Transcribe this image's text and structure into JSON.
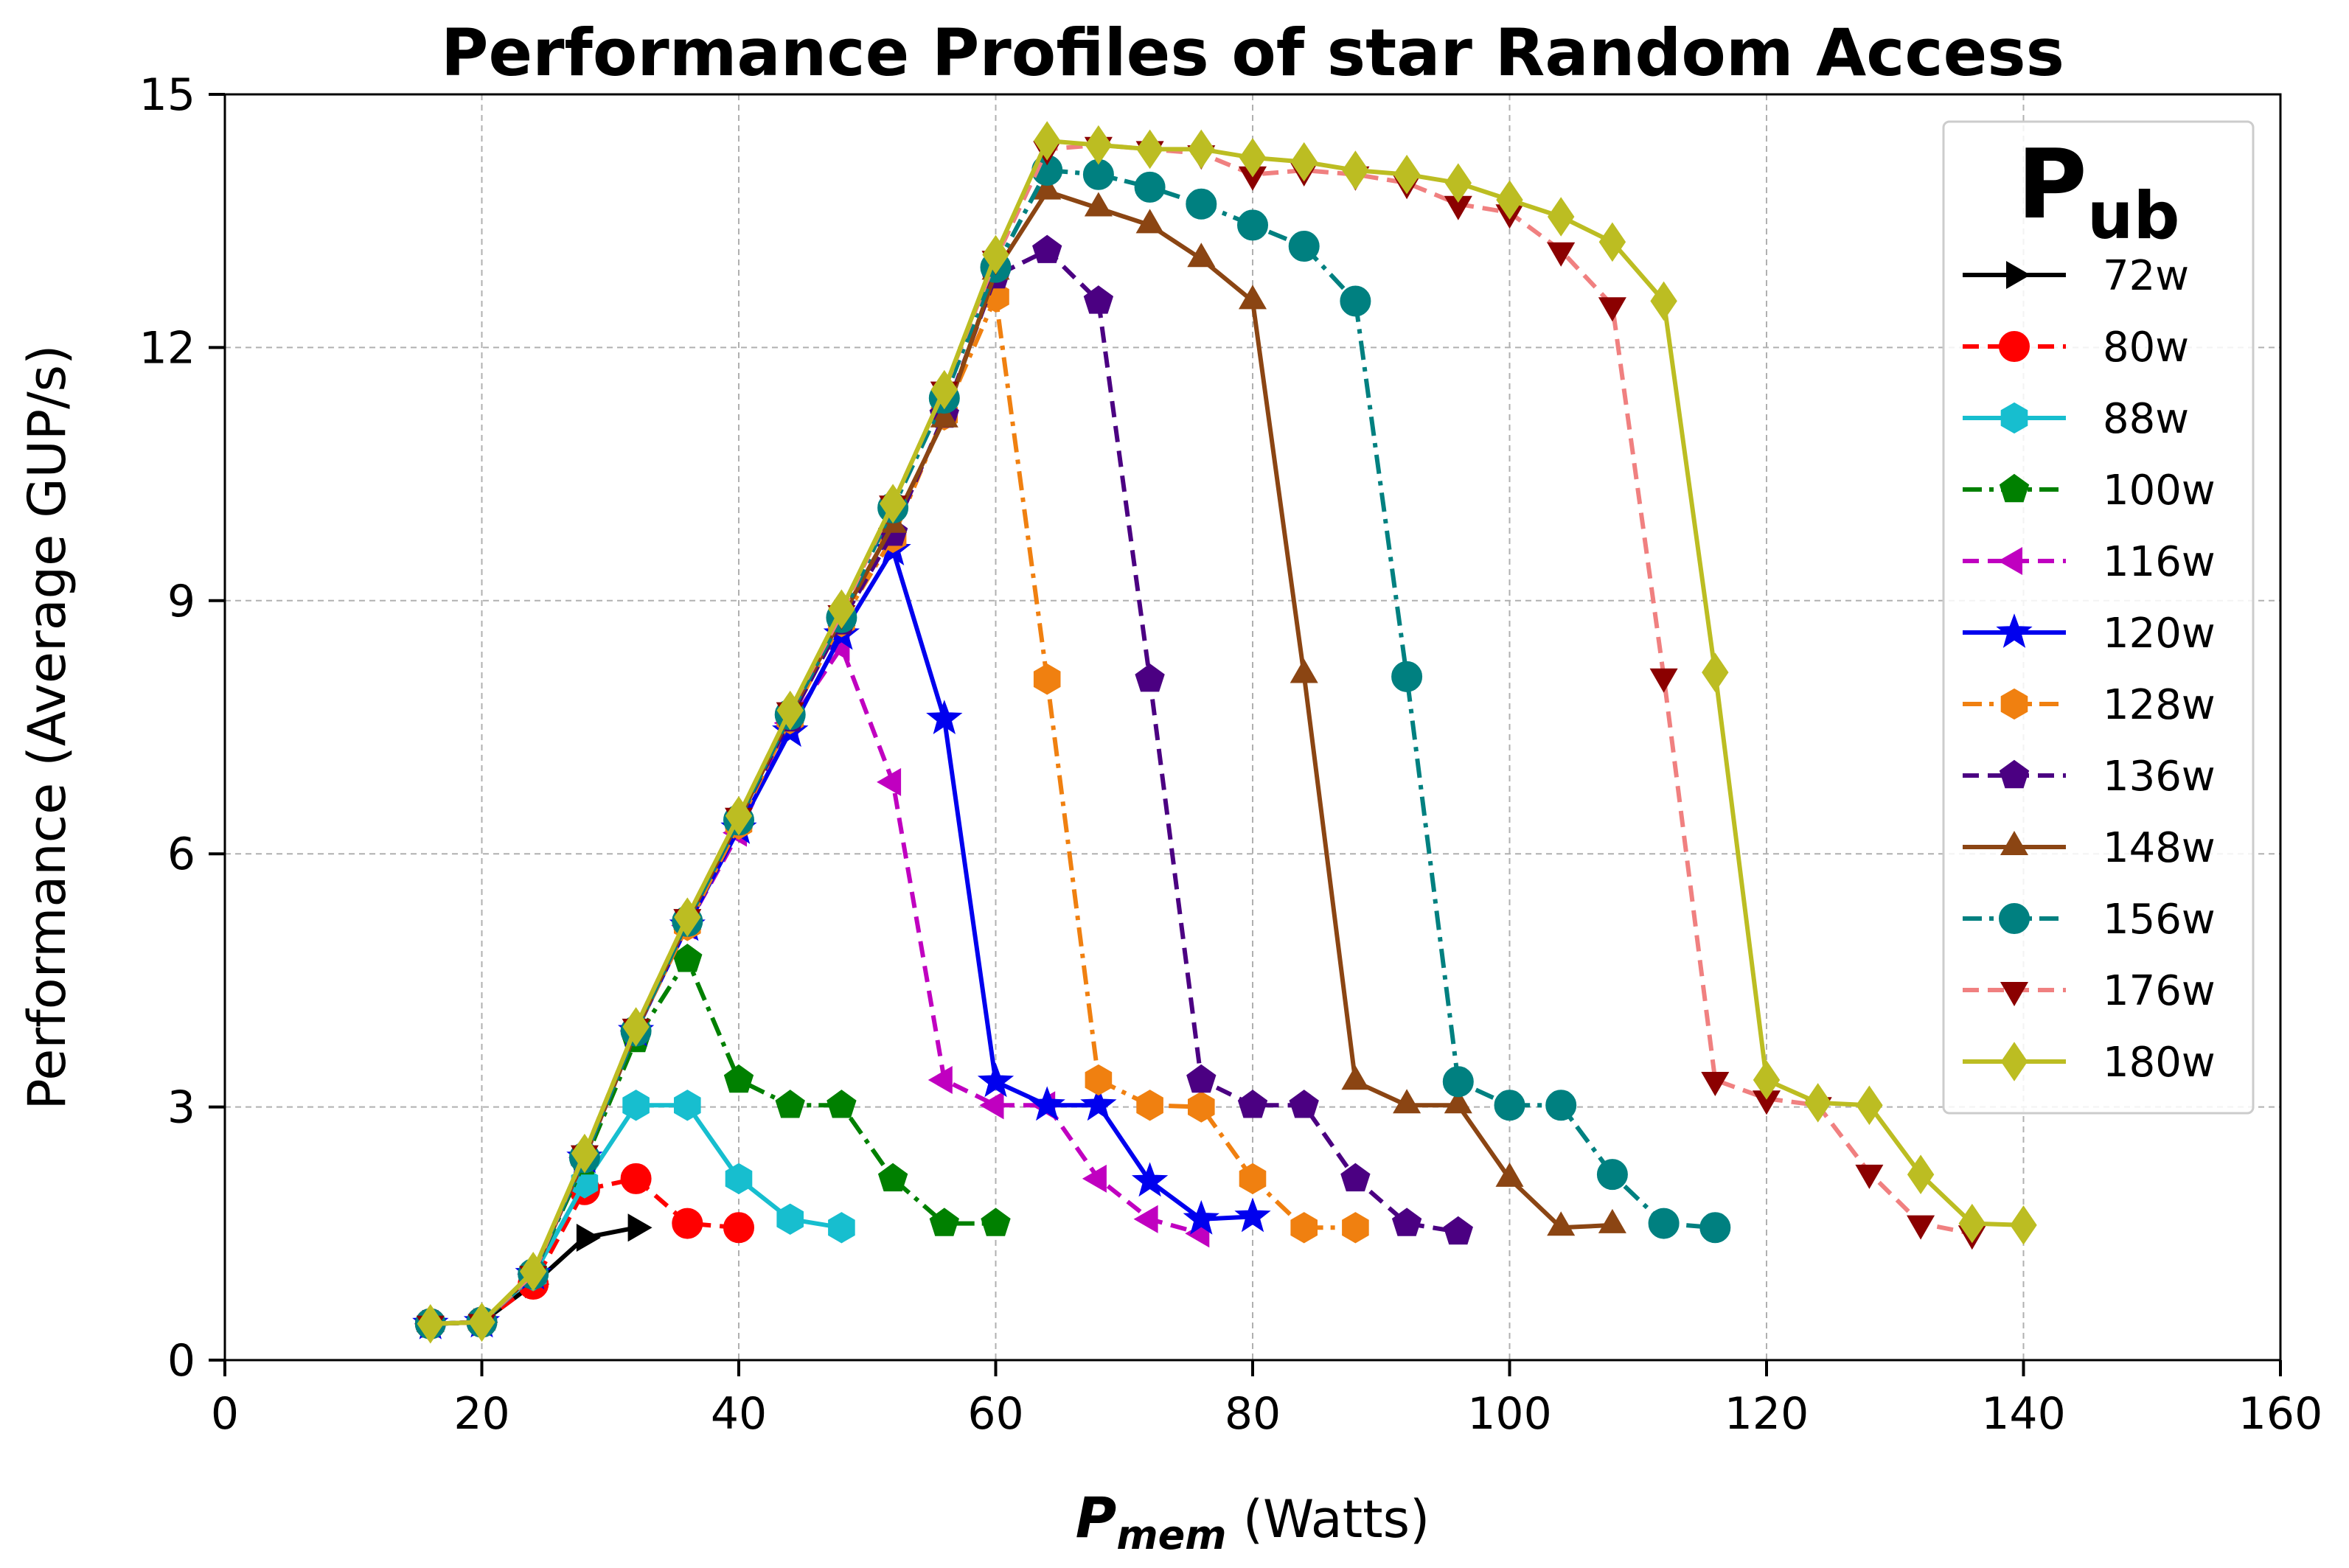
{
  "chart_data": {
    "type": "line",
    "title": "Performance Profiles of star Random Access",
    "xlabel": {
      "main": "P",
      "sub": "mem",
      "unit": " (Watts)"
    },
    "ylabel": "Performance (Average GUP/s)",
    "xlim": [
      0,
      160
    ],
    "ylim": [
      0,
      15
    ],
    "xticks": [
      "0",
      "20",
      "40",
      "60",
      "80",
      "100",
      "120",
      "140",
      "160"
    ],
    "yticks": [
      "0",
      "3",
      "6",
      "9",
      "12",
      "15"
    ],
    "grid": true,
    "legend": {
      "title_main": "P",
      "title_sub": "ub",
      "position": "top-right"
    },
    "series": [
      {
        "name": "72w",
        "color": "#000000",
        "dash": "solid",
        "marker": "triangle-right",
        "x": [
          16,
          20,
          24,
          28,
          32
        ],
        "y": [
          0.43,
          0.45,
          0.9,
          1.45,
          1.57
        ]
      },
      {
        "name": "80w",
        "color": "#ff0000",
        "dash": "dashed",
        "marker": "circle",
        "x": [
          16,
          20,
          24,
          28,
          32,
          36,
          40
        ],
        "y": [
          0.43,
          0.45,
          0.9,
          2.02,
          2.15,
          1.62,
          1.57
        ]
      },
      {
        "name": "88w",
        "color": "#17becf",
        "dash": "solid",
        "marker": "hexagon",
        "x": [
          16,
          20,
          24,
          28,
          32,
          36,
          40,
          44,
          48
        ],
        "y": [
          0.43,
          0.45,
          1.0,
          2.1,
          3.02,
          3.02,
          2.15,
          1.67,
          1.57
        ]
      },
      {
        "name": "100w",
        "color": "#008000",
        "dash": "dashdot",
        "marker": "pentagon",
        "x": [
          16,
          20,
          24,
          28,
          32,
          36,
          40,
          44,
          48,
          52,
          56,
          60
        ],
        "y": [
          0.43,
          0.45,
          1.02,
          2.35,
          3.8,
          4.75,
          3.32,
          3.02,
          3.02,
          2.15,
          1.62,
          1.62
        ]
      },
      {
        "name": "116w",
        "color": "#c000c0",
        "dash": "dashed",
        "marker": "triangle-left",
        "x": [
          16,
          20,
          24,
          28,
          32,
          36,
          40,
          44,
          48,
          52,
          56,
          60,
          64,
          68,
          72,
          76
        ],
        "y": [
          0.43,
          0.45,
          1.02,
          2.4,
          3.9,
          5.15,
          6.25,
          7.55,
          8.45,
          6.85,
          3.32,
          3.02,
          3.02,
          2.15,
          1.67,
          1.5
        ]
      },
      {
        "name": "120w",
        "color": "#0000ee",
        "dash": "solid",
        "marker": "star",
        "x": [
          16,
          20,
          24,
          28,
          32,
          36,
          40,
          44,
          48,
          52,
          56,
          60,
          64,
          68,
          72,
          76,
          80
        ],
        "y": [
          0.43,
          0.45,
          1.02,
          2.4,
          3.9,
          5.15,
          6.3,
          7.45,
          8.6,
          9.6,
          7.6,
          3.3,
          3.02,
          3.02,
          2.12,
          1.67,
          1.7
        ]
      },
      {
        "name": "128w",
        "color": "#f08010",
        "dash": "dashdot",
        "marker": "hexagon",
        "x": [
          16,
          20,
          24,
          28,
          32,
          36,
          40,
          44,
          48,
          52,
          56,
          60,
          64,
          68,
          72,
          76,
          80,
          84,
          88
        ],
        "y": [
          0.43,
          0.45,
          1.02,
          2.4,
          3.9,
          5.15,
          6.35,
          7.6,
          8.75,
          9.75,
          11.2,
          12.6,
          8.07,
          3.32,
          3.02,
          3.0,
          2.15,
          1.57,
          1.57
        ]
      },
      {
        "name": "136w",
        "color": "#4b0082",
        "dash": "dashed",
        "marker": "pentagon",
        "x": [
          16,
          20,
          24,
          28,
          32,
          36,
          40,
          44,
          48,
          52,
          56,
          60,
          64,
          68,
          72,
          76,
          80,
          84,
          88,
          92,
          96
        ],
        "y": [
          0.43,
          0.45,
          1.02,
          2.4,
          3.9,
          5.2,
          6.4,
          7.6,
          8.75,
          9.8,
          11.2,
          12.85,
          13.15,
          12.55,
          8.07,
          3.32,
          3.02,
          3.02,
          2.15,
          1.62,
          1.52
        ]
      },
      {
        "name": "148w",
        "color": "#8b4513",
        "dash": "solid",
        "marker": "triangle-up",
        "x": [
          16,
          20,
          24,
          28,
          32,
          36,
          40,
          44,
          48,
          52,
          56,
          60,
          64,
          68,
          72,
          76,
          80,
          84,
          88,
          92,
          96,
          100,
          104,
          108
        ],
        "y": [
          0.43,
          0.45,
          1.02,
          2.4,
          3.9,
          5.2,
          6.4,
          7.65,
          8.8,
          9.9,
          11.15,
          12.9,
          13.85,
          13.65,
          13.45,
          13.05,
          12.55,
          8.12,
          3.3,
          3.02,
          3.02,
          2.15,
          1.57,
          1.6
        ]
      },
      {
        "name": "156w",
        "color": "#008080",
        "dash": "dashdot",
        "marker": "circle",
        "x": [
          16,
          20,
          24,
          28,
          32,
          36,
          40,
          44,
          48,
          52,
          56,
          60,
          64,
          68,
          72,
          76,
          80,
          84,
          88,
          92,
          96,
          100,
          104,
          108,
          112,
          116
        ],
        "y": [
          0.43,
          0.45,
          1.02,
          2.4,
          3.9,
          5.2,
          6.4,
          7.65,
          8.8,
          10.1,
          11.4,
          12.95,
          14.1,
          14.05,
          13.9,
          13.7,
          13.45,
          13.2,
          12.55,
          8.1,
          3.3,
          3.02,
          3.02,
          2.2,
          1.62,
          1.57
        ]
      },
      {
        "name": "176w",
        "color": "#f08080",
        "dash": "dashed",
        "marker": "triangle-down",
        "x": [
          16,
          20,
          24,
          28,
          32,
          36,
          40,
          44,
          48,
          52,
          56,
          60,
          64,
          68,
          72,
          76,
          80,
          84,
          88,
          92,
          96,
          100,
          104,
          108,
          112,
          116,
          120,
          124,
          128,
          132,
          136
        ],
        "y": [
          0.43,
          0.45,
          1.02,
          2.45,
          3.95,
          5.25,
          6.45,
          7.7,
          8.85,
          10.15,
          11.5,
          13.05,
          14.35,
          14.4,
          14.35,
          14.3,
          14.05,
          14.1,
          14.05,
          13.95,
          13.7,
          13.6,
          13.15,
          12.5,
          8.1,
          3.32,
          3.1,
          3.02,
          2.22,
          1.62,
          1.5
        ]
      },
      {
        "name": "180w",
        "color": "#bcbd22",
        "dash": "solid",
        "marker": "diamond",
        "x": [
          16,
          20,
          24,
          28,
          32,
          36,
          40,
          44,
          48,
          52,
          56,
          60,
          64,
          68,
          72,
          76,
          80,
          84,
          88,
          92,
          96,
          100,
          104,
          108,
          112,
          116,
          120,
          124,
          128,
          132,
          136,
          140
        ],
        "y": [
          0.43,
          0.45,
          1.05,
          2.45,
          3.95,
          5.25,
          6.45,
          7.7,
          8.9,
          10.15,
          11.5,
          13.1,
          14.45,
          14.4,
          14.35,
          14.35,
          14.25,
          14.2,
          14.1,
          14.05,
          13.95,
          13.75,
          13.55,
          13.25,
          12.55,
          8.15,
          3.32,
          3.05,
          3.02,
          2.2,
          1.62,
          1.6
        ]
      }
    ]
  }
}
